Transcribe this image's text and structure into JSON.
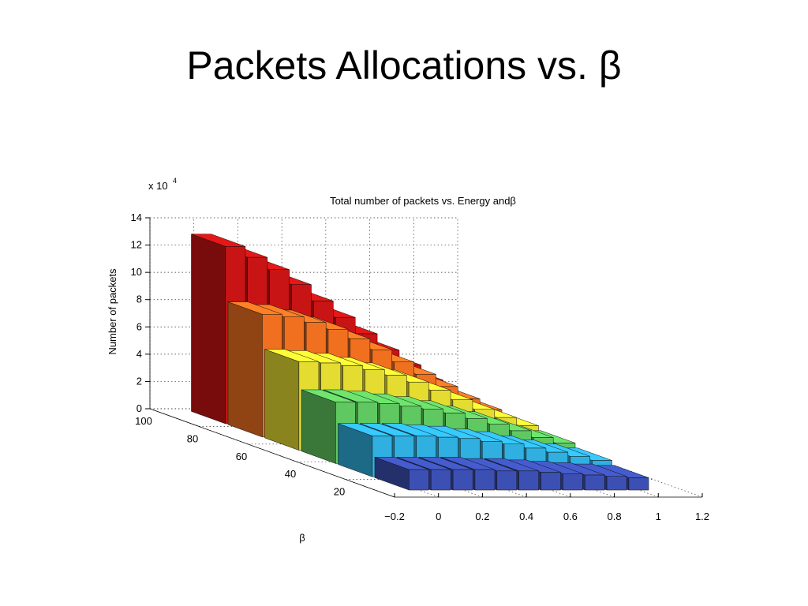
{
  "slide_title": "Packets Allocations vs. β",
  "chart_data": {
    "type": "bar3d",
    "title": "Total number of packets vs. Energy andβ",
    "ylabel": "Number of packets",
    "beta_label": "β",
    "y_exponent_base": "x 10",
    "y_exponent": 4,
    "x": [
      0,
      0.1,
      0.2,
      0.3,
      0.4,
      0.5,
      0.6,
      0.7,
      0.8,
      0.9,
      1
    ],
    "xlim": [
      -0.2,
      1.2
    ],
    "xticks": [
      {
        "value": -0.2,
        "label": "−0.2"
      },
      0,
      0.2,
      0.4,
      0.6,
      0.8,
      1,
      1.2
    ],
    "betalim": [
      0,
      100
    ],
    "betaticks": [
      20,
      40,
      60,
      80,
      100
    ],
    "ylim": [
      0,
      14
    ],
    "yticks": [
      0,
      2,
      4,
      6,
      8,
      10,
      12,
      14
    ],
    "grid": true,
    "series": [
      {
        "beta": 90,
        "color": "#c81414",
        "values": [
          13,
          12.2,
          11.3,
          10.2,
          9,
          7.8,
          6.6,
          5.4,
          4.3,
          3.2,
          2.2
        ]
      },
      {
        "beta": 75,
        "color": "#f07020",
        "values": [
          9,
          8.8,
          8.4,
          7.9,
          7.2,
          6.4,
          5.5,
          4.6,
          3.7,
          2.8,
          2
        ]
      },
      {
        "beta": 60,
        "color": "#e4dc30",
        "values": [
          6.5,
          6.4,
          6.2,
          5.9,
          5.5,
          5,
          4.4,
          3.7,
          3,
          2.4,
          1.8
        ]
      },
      {
        "beta": 45,
        "color": "#60c860",
        "values": [
          4.5,
          4.5,
          4.4,
          4.2,
          4,
          3.7,
          3.3,
          2.9,
          2.4,
          1.9,
          1.5
        ]
      },
      {
        "beta": 30,
        "color": "#30b0e0",
        "values": [
          3,
          3,
          3,
          2.9,
          2.8,
          2.6,
          2.4,
          2.1,
          1.8,
          1.5,
          1.2
        ]
      },
      {
        "beta": 15,
        "color": "#3c50b4",
        "values": [
          1.5,
          1.5,
          1.5,
          1.5,
          1.4,
          1.4,
          1.3,
          1.2,
          1.1,
          1,
          0.9
        ]
      }
    ]
  }
}
